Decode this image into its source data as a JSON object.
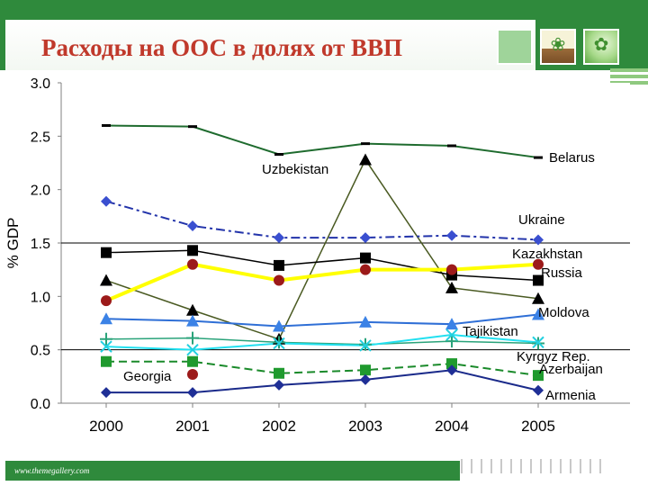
{
  "title": "Расходы на ООС в долях от ВВП",
  "footer": {
    "url": "www.themegallery.com"
  },
  "chart_data": {
    "type": "line",
    "title": "",
    "xlabel": "",
    "ylabel": "% GDP",
    "x": [
      "2000",
      "2001",
      "2002",
      "2003",
      "2004",
      "2005"
    ],
    "ylim": [
      0,
      3
    ],
    "yticks": [
      "0.0",
      "0.5",
      "1.0",
      "1.5",
      "2.0",
      "2.5",
      "3.0"
    ],
    "ref_lines": [
      1.5,
      0.5
    ],
    "series": [
      {
        "name": "Belarus",
        "values": [
          2.6,
          2.59,
          2.33,
          2.43,
          2.41,
          2.3
        ],
        "color": "#1e6b2e",
        "marker": "dash",
        "dash": "",
        "width": 2
      },
      {
        "name": "Uzbekistan",
        "values": [
          1.15,
          0.87,
          0.6,
          2.28,
          1.08,
          0.98
        ],
        "color": "#4a5a22",
        "marker": "triangle",
        "markerColor": "#000000",
        "dash": "",
        "width": 1.5
      },
      {
        "name": "Ukraine",
        "values": [
          1.89,
          1.66,
          1.55,
          1.55,
          1.57,
          1.53
        ],
        "color": "#2233aa",
        "marker": "diamond",
        "markerColor": "#3a4fd0",
        "dash": "10 4 3 4",
        "width": 2
      },
      {
        "name": "Kazakhstan",
        "values": [
          1.41,
          1.43,
          1.29,
          1.36,
          1.2,
          1.15
        ],
        "color": "#000000",
        "marker": "square",
        "markerColor": "#000000",
        "dash": "",
        "width": 1.5
      },
      {
        "name": "Russia",
        "values": [
          0.96,
          1.3,
          1.15,
          1.25,
          1.25,
          1.3
        ],
        "color": "#ffff00",
        "marker": "circle",
        "markerColor": "#9c1a1a",
        "dash": "",
        "width": 4
      },
      {
        "name": "Moldova",
        "values": [
          0.79,
          0.77,
          0.72,
          0.76,
          0.74,
          0.83
        ],
        "color": "#2f6fd6",
        "marker": "triangle",
        "markerColor": "#3b82e6",
        "dash": "",
        "width": 2
      },
      {
        "name": "Tajikistan",
        "values": [
          0.6,
          0.61,
          0.57,
          0.55,
          0.58,
          0.56
        ],
        "color": "#2aa37a",
        "marker": "plus",
        "markerColor": "#2aa37a",
        "dash": "",
        "width": 1.5
      },
      {
        "name": "Kyrgyz Rep.",
        "values": [
          0.53,
          0.5,
          0.56,
          0.54,
          0.64,
          0.57
        ],
        "color": "#22e0f0",
        "marker": "cross",
        "markerColor": "#22d0e0",
        "dash": "",
        "width": 2
      },
      {
        "name": "Azerbaijan",
        "values": [
          0.39,
          0.39,
          0.28,
          0.31,
          0.37,
          0.26
        ],
        "color": "#1a8a2a",
        "marker": "square",
        "markerColor": "#1f9a2e",
        "dash": "9 5",
        "width": 2
      },
      {
        "name": "Georgia",
        "values": [
          null,
          0.27,
          null,
          null,
          null,
          null
        ],
        "color": "#9c1a1a",
        "marker": "circle",
        "markerColor": "#9c1a1a",
        "dash": "",
        "width": 0
      },
      {
        "name": "Armenia",
        "values": [
          0.1,
          0.1,
          0.17,
          0.22,
          0.31,
          0.12
        ],
        "color": "#1a2a8a",
        "marker": "diamond",
        "markerColor": "#1f2f96",
        "dash": "",
        "width": 2
      }
    ],
    "labels": [
      {
        "text": "Belarus",
        "series": "Belarus"
      },
      {
        "text": "Uzbekistan",
        "series": "Uzbekistan"
      },
      {
        "text": "Ukraine",
        "series": "Ukraine"
      },
      {
        "text": "Kazakhstan",
        "series": "Kazakhstan"
      },
      {
        "text": "Russia",
        "series": "Russia"
      },
      {
        "text": "Moldova",
        "series": "Moldova"
      },
      {
        "text": "Tajikistan",
        "series": "Tajikistan"
      },
      {
        "text": "Kyrgyz Rep.",
        "series": "Kyrgyz Rep."
      },
      {
        "text": "Azerbaijan",
        "series": "Azerbaijan"
      },
      {
        "text": "Georgia",
        "series": "Georgia"
      },
      {
        "text": "Armenia",
        "series": "Armenia"
      }
    ]
  }
}
